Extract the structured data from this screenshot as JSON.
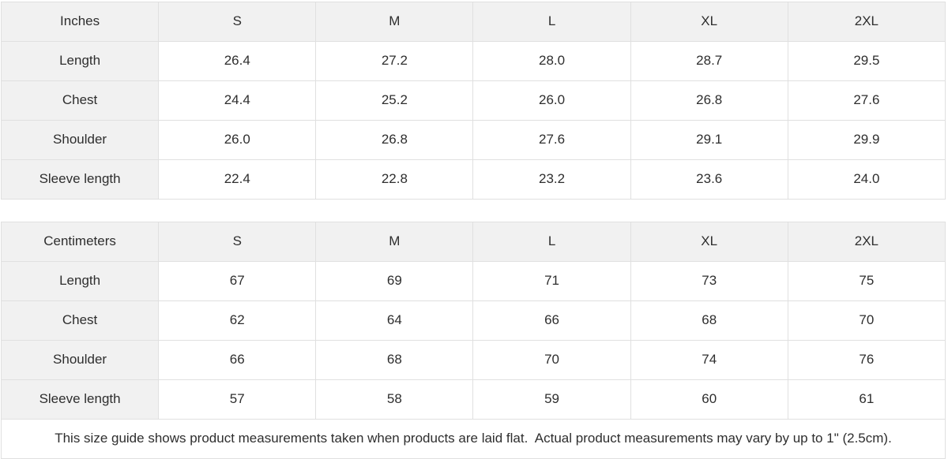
{
  "colors": {
    "header_bg": "#f1f1f1",
    "border": "#e0e0e0",
    "text": "#2e2e2e",
    "background": "#ffffff"
  },
  "size_guide": {
    "tables": [
      {
        "unit_label": "Inches",
        "columns": [
          "S",
          "M",
          "L",
          "XL",
          "2XL"
        ],
        "rows": [
          {
            "label": "Length",
            "values": [
              "26.4",
              "27.2",
              "28.0",
              "28.7",
              "29.5"
            ]
          },
          {
            "label": "Chest",
            "values": [
              "24.4",
              "25.2",
              "26.0",
              "26.8",
              "27.6"
            ]
          },
          {
            "label": "Shoulder",
            "values": [
              "26.0",
              "26.8",
              "27.6",
              "29.1",
              "29.9"
            ]
          },
          {
            "label": "Sleeve length",
            "values": [
              "22.4",
              "22.8",
              "23.2",
              "23.6",
              "24.0"
            ]
          }
        ]
      },
      {
        "unit_label": "Centimeters",
        "columns": [
          "S",
          "M",
          "L",
          "XL",
          "2XL"
        ],
        "rows": [
          {
            "label": "Length",
            "values": [
              "67",
              "69",
              "71",
              "73",
              "75"
            ]
          },
          {
            "label": "Chest",
            "values": [
              "62",
              "64",
              "66",
              "68",
              "70"
            ]
          },
          {
            "label": "Shoulder",
            "values": [
              "66",
              "68",
              "70",
              "74",
              "76"
            ]
          },
          {
            "label": "Sleeve length",
            "values": [
              "57",
              "58",
              "59",
              "60",
              "61"
            ]
          }
        ]
      }
    ],
    "footnote": "This size guide shows product measurements taken when products are laid flat.  Actual product measurements may vary by up to 1\" (2.5cm)."
  }
}
